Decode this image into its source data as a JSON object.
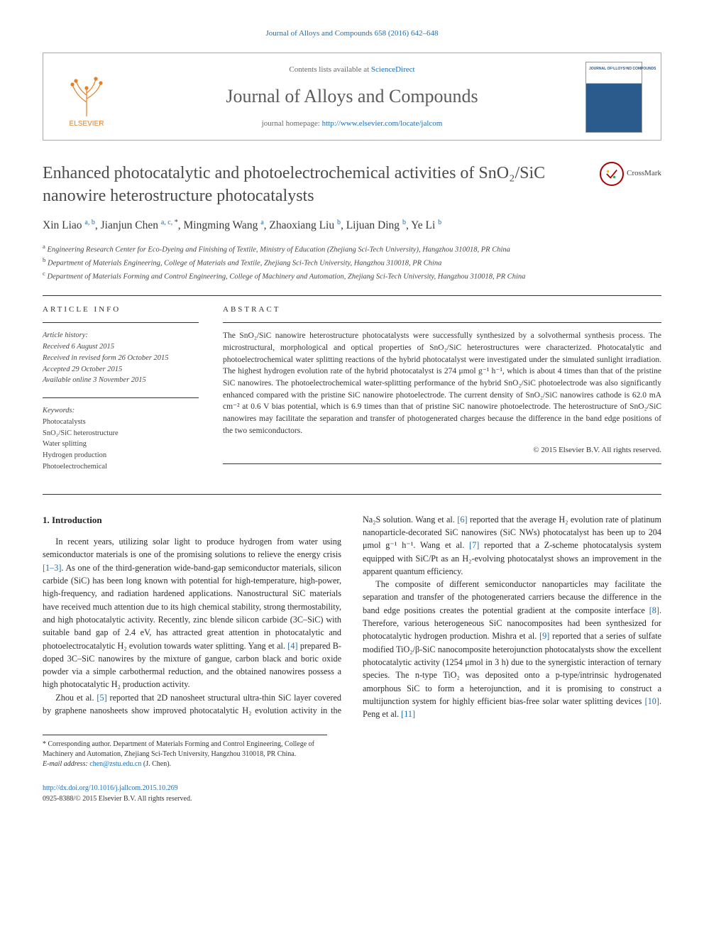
{
  "citation": "Journal of Alloys and Compounds 658 (2016) 642–648",
  "header": {
    "contents_prefix": "Contents lists available at ",
    "contents_link": "ScienceDirect",
    "journal": "Journal of Alloys and Compounds",
    "homepage_prefix": "journal homepage: ",
    "homepage_url": "http://www.elsevier.com/locate/jalcom",
    "publisher": "ELSEVIER"
  },
  "crossmark_label": "CrossMark",
  "title": "Enhanced photocatalytic and photoelectrochemical activities of SnO₂/SiC nanowire heterostructure photocatalysts",
  "authors_html": "Xin Liao <sup>a, b</sup>, Jianjun Chen <sup>a, c, <span class='star'>*</span></sup>, Mingming Wang <sup>a</sup>, Zhaoxiang Liu <sup>b</sup>, Lijuan Ding <sup>b</sup>, Ye Li <sup>b</sup>",
  "affiliations": {
    "a": "Engineering Research Center for Eco-Dyeing and Finishing of Textile, Ministry of Education (Zhejiang Sci-Tech University), Hangzhou 310018, PR China",
    "b": "Department of Materials Engineering, College of Materials and Textile, Zhejiang Sci-Tech University, Hangzhou 310018, PR China",
    "c": "Department of Materials Forming and Control Engineering, College of Machinery and Automation, Zhejiang Sci-Tech University, Hangzhou 310018, PR China"
  },
  "article_info_label": "ARTICLE INFO",
  "abstract_label": "ABSTRACT",
  "history": {
    "label": "Article history:",
    "received": "Received 6 August 2015",
    "revised": "Received in revised form 26 October 2015",
    "accepted": "Accepted 29 October 2015",
    "online": "Available online 3 November 2015"
  },
  "keywords": {
    "label": "Keywords:",
    "items": [
      "Photocatalysts",
      "SnO₂/SiC heterostructure",
      "Water splitting",
      "Hydrogen production",
      "Photoelectrochemical"
    ]
  },
  "abstract": "The SnO₂/SiC nanowire heterostructure photocatalysts were successfully synthesized by a solvothermal synthesis process. The microstructural, morphological and optical properties of SnO₂/SiC heterostructures were characterized. Photocatalytic and photoelectrochemical water splitting reactions of the hybrid photocatalyst were investigated under the simulated sunlight irradiation. The highest hydrogen evolution rate of the hybrid photocatalyst is 274 μmol g⁻¹ h⁻¹, which is about 4 times than that of the pristine SiC nanowires. The photoelectrochemical water-splitting performance of the hybrid SnO₂/SiC photoelectrode was also significantly enhanced compared with the pristine SiC nanowire photoelectrode. The current density of SnO₂/SiC nanowires cathode is 62.0 mA cm⁻² at 0.6 V bias potential, which is 6.9 times than that of pristine SiC nanowire photoelectrode. The heterostructure of SnO₂/SiC nanowires may facilitate the separation and transfer of photogenerated charges because the difference in the band edge positions of the two semiconductors.",
  "copyright": "© 2015 Elsevier B.V. All rights reserved.",
  "intro_heading": "1. Introduction",
  "intro_p1": "In recent years, utilizing solar light to produce hydrogen from water using semiconductor materials is one of the promising solutions to relieve the energy crisis [1–3]. As one of the third-generation wide-band-gap semiconductor materials, silicon carbide (SiC) has been long known with potential for high-temperature, high-power, high-frequency, and radiation hardened applications. Nanostructural SiC materials have received much attention due to its high chemical stability, strong thermostability, and high photocatalytic activity. Recently, zinc blende silicon carbide (3C–SiC) with suitable band gap of 2.4 eV, has attracted great attention in photocatalytic and photoelectrocatalytic H₂ evolution towards water splitting. Yang et al. [4] prepared B-doped 3C–SiC nanowires by the mixture of gangue, carbon black and boric oxide powder via a simple carbothermal reduction, and the obtained nanowires possess a high photocatalytic H₂ production activity.",
  "intro_p2": "Zhou et al. [5] reported that 2D nanosheet structural ultra-thin SiC layer covered by graphene nanosheets show improved photocatalytic H₂ evolution activity in the Na₂S solution. Wang et al. [6] reported that the average H₂ evolution rate of platinum nanoparticle-decorated SiC nanowires (SiC NWs) photocatalyst has been up to 204 μmol g⁻¹ h⁻¹. Wang et al. [7] reported that a Z-scheme photocatalysis system equipped with SiC/Pt as an H₂-evolving photocatalyst shows an improvement in the apparent quantum efficiency.",
  "intro_p3": "The composite of different semiconductor nanoparticles may facilitate the separation and transfer of the photogenerated carriers because the difference in the band edge positions creates the potential gradient at the composite interface [8]. Therefore, various heterogeneous SiC nanocomposites had been synthesized for photocatalytic hydrogen production. Mishra et al. [9] reported that a series of sulfate modified TiO₂/β-SiC nanocomposite heterojunction photocatalysts show the excellent photocatalytic activity (1254 μmol in 3 h) due to the synergistic interaction of ternary species. The n-type TiO₂ was deposited onto a p-type/intrinsic hydrogenated amorphous SiC to form a heterojunction, and it is promising to construct a multijunction system for highly efficient bias-free solar water splitting devices [10]. Peng et al. [11]",
  "footnote": {
    "corresponding": "* Corresponding author. Department of Materials Forming and Control Engineering, College of Machinery and Automation, Zhejiang Sci-Tech University, Hangzhou 310018, PR China.",
    "email_label": "E-mail address: ",
    "email": "chen@zstu.edu.cn",
    "email_suffix": " (J. Chen)."
  },
  "footer": {
    "doi": "http://dx.doi.org/10.1016/j.jallcom.2015.10.269",
    "issn": "0925-8388/© 2015 Elsevier B.V. All rights reserved."
  },
  "colors": {
    "link": "#1a6db8",
    "text": "#2a2a2a",
    "heading": "#4b4b4b",
    "tree_orange": "#e67e22"
  }
}
